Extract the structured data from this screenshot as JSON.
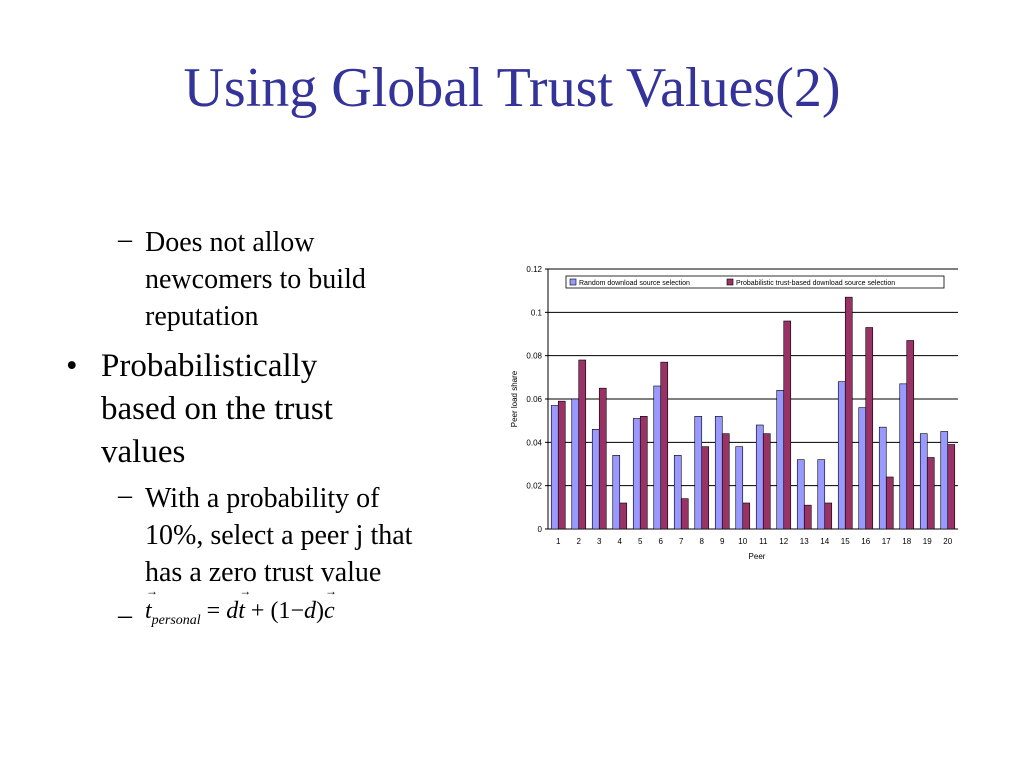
{
  "slide": {
    "title": "Using Global Trust Values(2)",
    "bullets": [
      {
        "level": 2,
        "marker": "–",
        "lines": [
          "Does not allow",
          "newcomers to build",
          "reputation"
        ]
      },
      {
        "level": 1,
        "marker": "•",
        "lines": [
          "Probabilistically",
          "based on the trust",
          "values"
        ]
      },
      {
        "level": 2,
        "marker": "–",
        "lines": [
          "With a probability of",
          "10%, select a peer j that",
          "has a zero trust value"
        ]
      },
      {
        "level": 2,
        "marker": "–",
        "lines": []
      }
    ],
    "equation": {
      "lhs": "t",
      "lhs_sub": "personal",
      "eq": "=",
      "d1": "d",
      "t": "t",
      "plus": "+",
      "open": "(1",
      "minus": "−",
      "d2": "d",
      "close": ")",
      "c": "c"
    }
  },
  "chart_data": {
    "type": "bar",
    "xlabel": "Peer",
    "ylabel": "Peer load share",
    "ylim": [
      0,
      0.12
    ],
    "yticks": [
      0,
      0.02,
      0.04,
      0.06,
      0.08,
      0.1,
      0.12
    ],
    "ytick_labels": [
      "0",
      "0.02",
      "0.04",
      "0.06",
      "0.08",
      "0.1",
      "0.12"
    ],
    "categories": [
      "1",
      "2",
      "3",
      "4",
      "5",
      "6",
      "7",
      "8",
      "9",
      "10",
      "11",
      "12",
      "13",
      "14",
      "15",
      "16",
      "17",
      "18",
      "19",
      "20"
    ],
    "grid": true,
    "legend_position": "top",
    "series": [
      {
        "name": "Random download source selection",
        "color": "#9999ff",
        "values": [
          0.057,
          0.06,
          0.046,
          0.034,
          0.051,
          0.066,
          0.034,
          0.052,
          0.052,
          0.038,
          0.048,
          0.064,
          0.032,
          0.032,
          0.068,
          0.056,
          0.047,
          0.067,
          0.044,
          0.045
        ]
      },
      {
        "name": "Probabilistic trust-based download source selection",
        "color": "#993366",
        "values": [
          0.059,
          0.078,
          0.065,
          0.012,
          0.052,
          0.077,
          0.014,
          0.038,
          0.044,
          0.012,
          0.044,
          0.096,
          0.011,
          0.012,
          0.107,
          0.093,
          0.024,
          0.087,
          0.033,
          0.039
        ]
      }
    ]
  }
}
